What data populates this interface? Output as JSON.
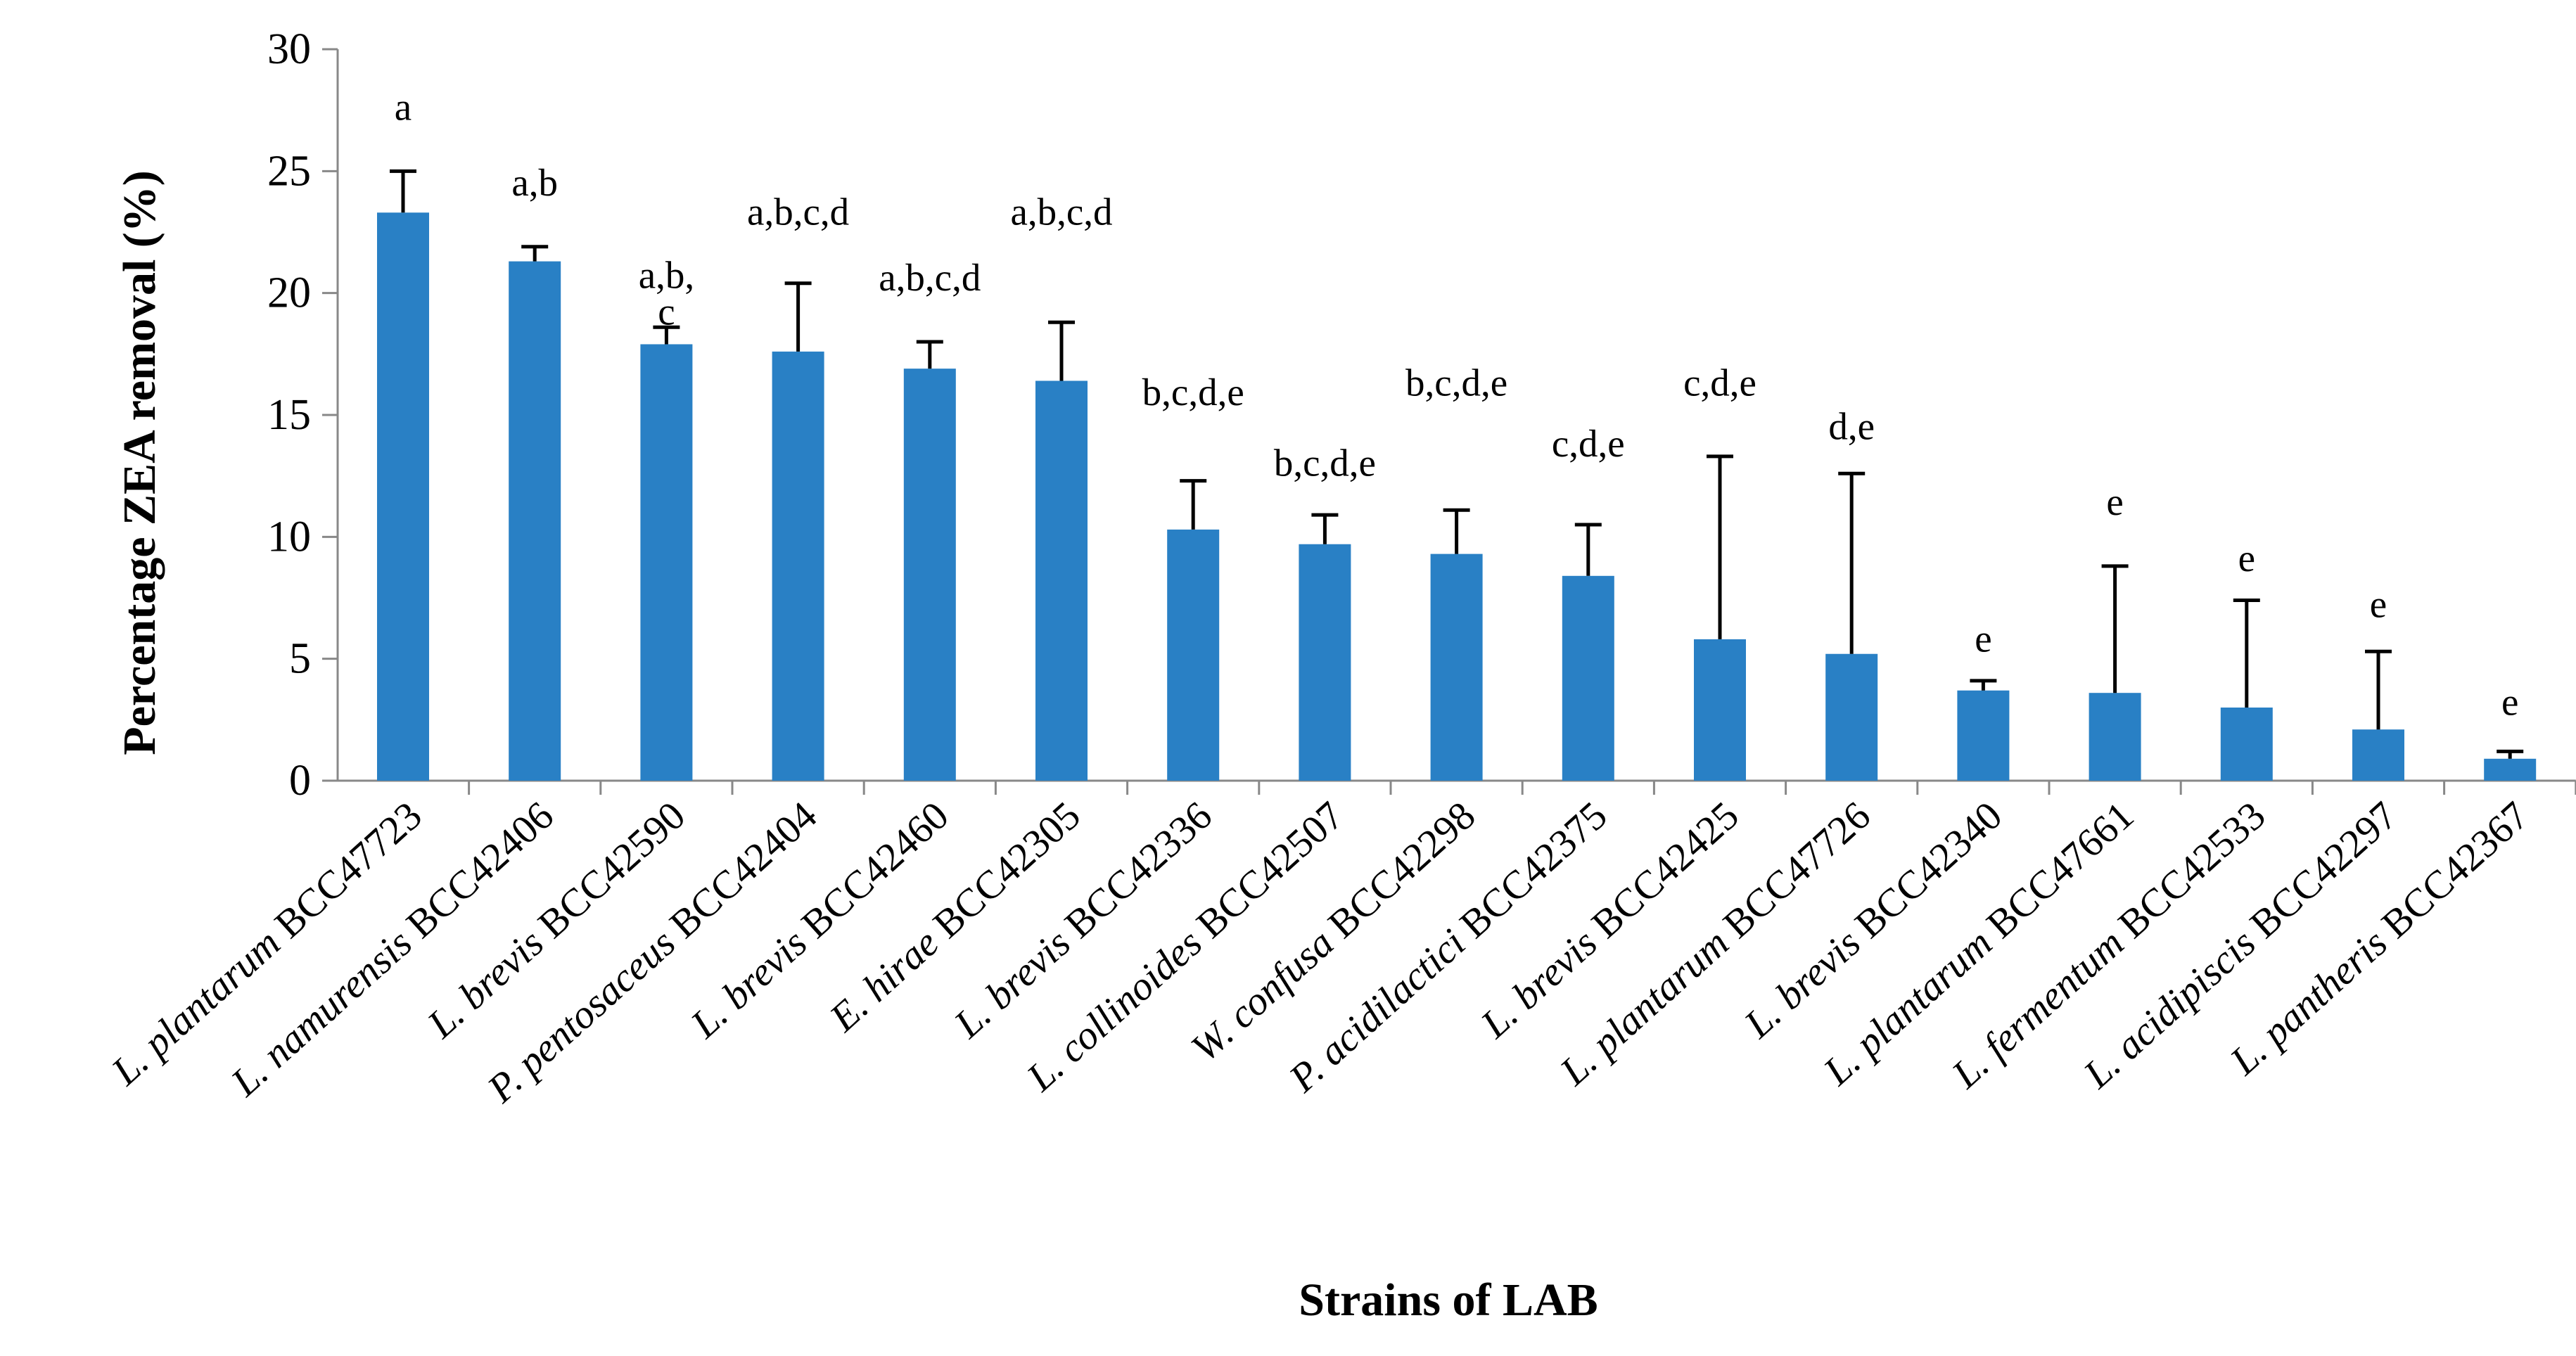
{
  "chart_data": {
    "type": "bar",
    "title": "",
    "xlabel": "Strains of LAB",
    "ylabel": "Percentage ZEA removal (%)",
    "ylim": [
      0,
      30
    ],
    "yticks": [
      "0",
      "5",
      "10",
      "15",
      "20",
      "25",
      "30"
    ],
    "grid": false,
    "bar_color": "#2980c5",
    "error_color": "#000000",
    "categories": [
      {
        "italic": "L. plantarum",
        "code": " BCC47723"
      },
      {
        "italic": "L. namurensis",
        "code": " BCC42406"
      },
      {
        "italic": "L. brevis",
        "code": " BCC42590"
      },
      {
        "italic": "P. pentosaceus",
        "code": " BCC42404"
      },
      {
        "italic": "L. brevis",
        "code": " BCC42460"
      },
      {
        "italic": "E. hirae",
        "code": " BCC42305"
      },
      {
        "italic": "L. brevis",
        "code": " BCC42336"
      },
      {
        "italic": "L. collinoides",
        "code": " BCC42507"
      },
      {
        "italic": "W. confusa",
        "code": " BCC42298"
      },
      {
        "italic": "P. acidilactici",
        "code": " BCC42375"
      },
      {
        "italic": "L. brevis",
        "code": " BCC42425"
      },
      {
        "italic": "L. plantarum",
        "code": " BCC47726"
      },
      {
        "italic": "L. brevis",
        "code": " BCC42340"
      },
      {
        "italic": "L. plantarum",
        "code": " BCC47661"
      },
      {
        "italic": "L. fermentum",
        "code": " BCC42533"
      },
      {
        "italic": "L. acidipiscis",
        "code": " BCC42297"
      },
      {
        "italic": "L. pantheris",
        "code": " BCC42367"
      }
    ],
    "values": [
      23.3,
      21.3,
      17.9,
      17.6,
      16.9,
      16.4,
      10.3,
      9.7,
      9.3,
      8.4,
      5.8,
      5.2,
      3.7,
      3.6,
      3.0,
      2.1,
      0.9
    ],
    "errors": [
      1.7,
      0.6,
      0.7,
      2.8,
      1.1,
      2.4,
      2.0,
      1.2,
      1.8,
      2.1,
      7.5,
      7.4,
      0.4,
      5.2,
      4.4,
      3.2,
      0.3
    ],
    "significance_labels": [
      "a",
      "a,b",
      "a,b,\nc",
      "a,b,c,d",
      "a,b,c,d",
      "a,b,c,d",
      "b,c,d,e",
      "b,c,d,e",
      "b,c,d,e",
      "c,d,e",
      "c,d,e",
      "d,e",
      "e",
      "e",
      "e",
      "e",
      "e"
    ],
    "significance_values": [
      27.1,
      24.0,
      20.2,
      22.8,
      20.1,
      22.8,
      15.4,
      12.5,
      15.8,
      13.3,
      15.8,
      14.0,
      5.3,
      10.9,
      8.6,
      6.7,
      2.7
    ]
  }
}
